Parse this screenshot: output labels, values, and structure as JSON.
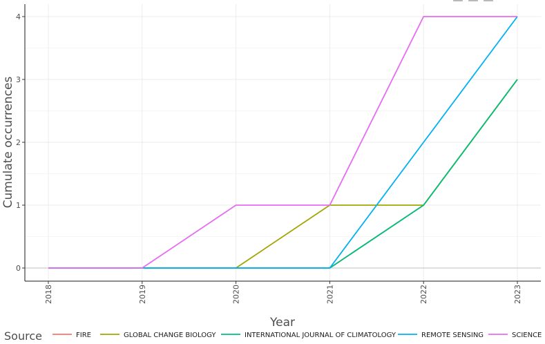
{
  "chart_data": {
    "type": "line",
    "title": "",
    "xlabel": "Year",
    "ylabel": "Cumulate occurrences",
    "x": [
      2018,
      2019,
      2020,
      2021,
      2022,
      2023
    ],
    "x_tick_labels": [
      "2018",
      "2019",
      "2020",
      "2021",
      "2022",
      "2023"
    ],
    "y_ticks": [
      0,
      1,
      2,
      3,
      4
    ],
    "y_tick_labels": [
      "0",
      "1",
      "2",
      "3",
      "4"
    ],
    "ylim": [
      -0.2,
      4.2
    ],
    "grid": true,
    "legend": {
      "title": "Source",
      "placement": "bottom"
    },
    "series": [
      {
        "name": "FIRE",
        "color": "#F8766D",
        "values": [
          0,
          0,
          0,
          0,
          1,
          3
        ]
      },
      {
        "name": "GLOBAL CHANGE BIOLOGY",
        "color": "#A3A500",
        "values": [
          0,
          0,
          0,
          1,
          1,
          3
        ]
      },
      {
        "name": "INTERNATIONAL JOURNAL OF CLIMATOLOGY",
        "color": "#00BF7D",
        "values": [
          0,
          0,
          0,
          0,
          1,
          3
        ]
      },
      {
        "name": "REMOTE SENSING",
        "color": "#00B0F6",
        "values": [
          0,
          0,
          0,
          0,
          2,
          4
        ]
      },
      {
        "name": "SCIENCE",
        "color": "#E76BF3",
        "values": [
          0,
          0,
          1,
          1,
          4,
          4
        ]
      }
    ]
  }
}
